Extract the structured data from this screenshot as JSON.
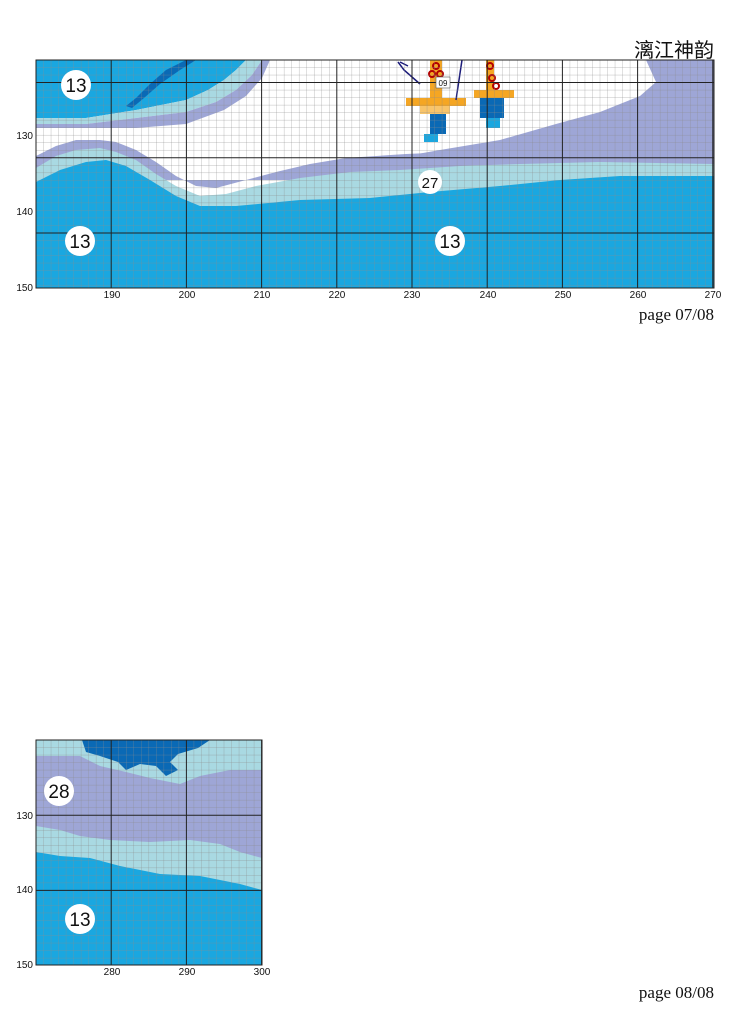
{
  "header": {
    "title": "漓江神韵"
  },
  "colors": {
    "c13": "#1aa7e0",
    "c27": "#a9d9e2",
    "c28": "#9ea6d6",
    "c09": "#f5a623",
    "dark_blue": "#0a69b5",
    "grid": "#b9b9b9",
    "major_grid": "#222222",
    "white": "#ffffff"
  },
  "panel1": {
    "page_label": "page 07/08",
    "x_ticks": [
      "190",
      "200",
      "210",
      "220",
      "230",
      "240",
      "250",
      "260",
      "270"
    ],
    "y_ticks": [
      "130",
      "140",
      "150"
    ],
    "badges": [
      {
        "label": "13"
      },
      {
        "label": "13"
      },
      {
        "label": "13"
      },
      {
        "label": "27"
      }
    ],
    "small_label": "09"
  },
  "panel2": {
    "page_label": "page 08/08",
    "x_ticks": [
      "280",
      "290",
      "300"
    ],
    "y_ticks": [
      "130",
      "140",
      "150"
    ],
    "badges": [
      {
        "label": "28"
      },
      {
        "label": "13"
      }
    ]
  }
}
